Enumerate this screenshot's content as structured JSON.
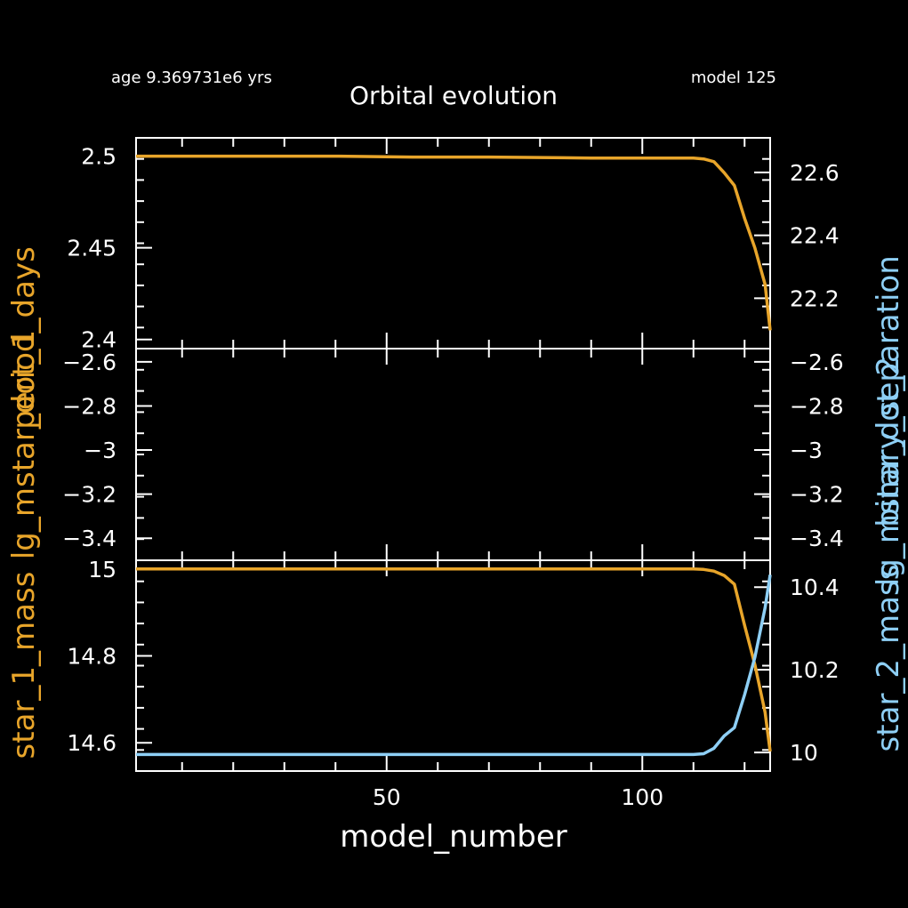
{
  "header": {
    "age_label": "age 9.369731e6 yrs",
    "model_label": "model 125",
    "title": "Orbital evolution"
  },
  "axes": {
    "xlabel": "model_number",
    "left_ylabels": {
      "top": "period_days",
      "middle": "lg_mstar_dot_1",
      "bottom": "star_1_mass"
    },
    "right_ylabels": {
      "top": "binary_separation",
      "middle": "lg_mstar_dot_2",
      "bottom": "star_2_mass"
    }
  },
  "colors": {
    "background": "#000000",
    "frame": "#ffffff",
    "series_left": "#e8a52a",
    "series_right": "#8ecff5"
  },
  "chart_data": [
    {
      "type": "line",
      "panel": "top",
      "xlim": [
        1,
        125
      ],
      "ylim_left": [
        2.395,
        2.51
      ],
      "ylim_right": [
        22.04,
        22.71
      ],
      "xticks": [
        50,
        100
      ],
      "left_ticks": [
        "2.5",
        "2.45",
        "2.4"
      ],
      "right_ticks": [
        "22.6",
        "22.4",
        "22.2"
      ],
      "series": [
        {
          "axis": "left",
          "x": [
            1,
            20,
            40,
            55,
            70,
            90,
            105,
            110,
            112,
            114,
            116,
            118,
            120,
            122,
            124,
            125
          ],
          "y": [
            2.5,
            2.5,
            2.5,
            2.4995,
            2.4995,
            2.499,
            2.499,
            2.499,
            2.4985,
            2.497,
            2.491,
            2.484,
            2.466,
            2.45,
            2.43,
            2.405
          ]
        }
      ]
    },
    {
      "type": "line",
      "panel": "middle",
      "xlim": [
        1,
        125
      ],
      "ylim_left": [
        -3.5,
        -2.54
      ],
      "ylim_right": [
        -3.5,
        -2.54
      ],
      "xticks": [
        50,
        100
      ],
      "left_ticks": [
        "−2.6",
        "−2.8",
        "−3",
        "−3.2",
        "−3.4"
      ],
      "right_ticks": [
        "−2.6",
        "−2.8",
        "−3",
        "−3.2",
        "−3.4"
      ],
      "series": []
    },
    {
      "type": "line",
      "panel": "bottom",
      "xlim": [
        1,
        125
      ],
      "ylim_left": [
        14.535,
        15.02
      ],
      "ylim_right": [
        9.955,
        10.465
      ],
      "xticks": [
        50,
        100
      ],
      "xtick_labels": [
        "50",
        "100"
      ],
      "left_ticks": [
        "15",
        "14.8",
        "14.6"
      ],
      "right_ticks": [
        "10.4",
        "10.2",
        "10"
      ],
      "series": [
        {
          "axis": "left",
          "x": [
            1,
            20,
            40,
            60,
            80,
            100,
            105,
            110,
            112,
            114,
            116,
            118,
            120,
            122,
            124,
            125
          ],
          "y": [
            15.0,
            15.0,
            15.0,
            15.0,
            15.0,
            15.0,
            15.0,
            15.0,
            14.999,
            14.995,
            14.985,
            14.965,
            14.87,
            14.78,
            14.67,
            14.58
          ]
        },
        {
          "axis": "right",
          "x": [
            1,
            20,
            40,
            60,
            80,
            100,
            110,
            112,
            114,
            116,
            118,
            120,
            122,
            124,
            125
          ],
          "y": [
            9.995,
            9.995,
            9.995,
            9.995,
            9.995,
            9.995,
            9.995,
            9.997,
            10.01,
            10.04,
            10.06,
            10.14,
            10.23,
            10.35,
            10.43
          ]
        }
      ]
    }
  ]
}
